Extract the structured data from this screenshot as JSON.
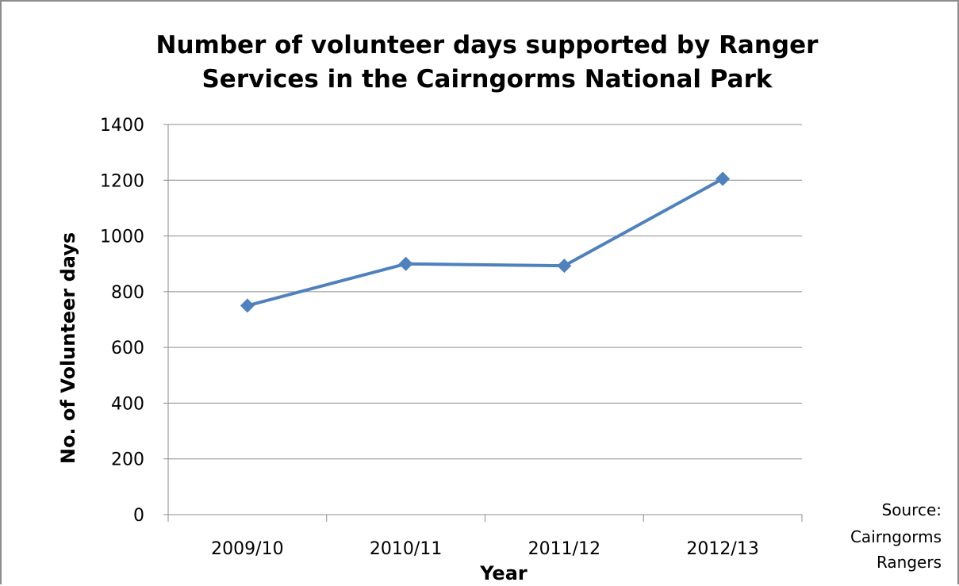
{
  "chart_data": {
    "type": "line",
    "title": [
      "Number of volunteer days supported by Ranger",
      "Services in the Cairngorms National Park"
    ],
    "xlabel": "Year",
    "ylabel": "No. of Volunteer days",
    "categories": [
      "2009/10",
      "2010/11",
      "2011/12",
      "2012/13"
    ],
    "series": [
      {
        "values": [
          750,
          900,
          893,
          1205
        ],
        "color": "#4f81bd",
        "marker": "diamond"
      }
    ],
    "ylim": [
      0,
      1400
    ],
    "yticks": [
      0,
      200,
      400,
      600,
      800,
      1000,
      1200,
      1400
    ],
    "grid": "horizontal",
    "legend": "none"
  },
  "source_note": [
    "Source:",
    "Cairngorms",
    "Rangers"
  ]
}
